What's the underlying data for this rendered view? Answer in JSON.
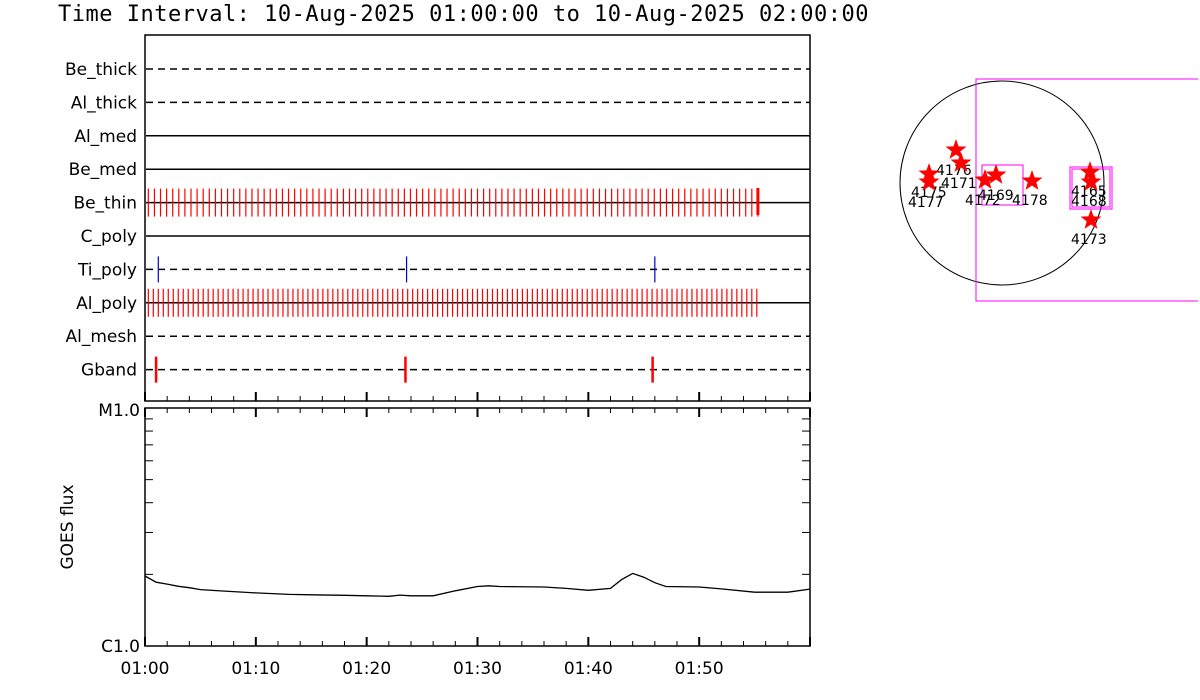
{
  "title": "Time Interval: 10-Aug-2025 01:00:00 to 10-Aug-2025 02:00:00",
  "colors": {
    "event_red": "#ff0000",
    "event_blue": "#0000cc",
    "axis": "#000000",
    "fov_box": "#ff00ff",
    "star": "#ff0000"
  },
  "chart_data": [
    {
      "type": "timeline",
      "name": "filter-timeline",
      "x_range_minutes": [
        0,
        60
      ],
      "rows": [
        {
          "label": "Be_thick",
          "style": "dashed",
          "events": []
        },
        {
          "label": "Al_thick",
          "style": "dashed",
          "events": []
        },
        {
          "label": "Al_med",
          "style": "solid",
          "events": []
        },
        {
          "label": "Be_med",
          "style": "solid",
          "events": []
        },
        {
          "label": "Be_thin",
          "style": "solid",
          "color": "event_red",
          "event_span": [
            0.3,
            55.3
          ],
          "event_spacing": 0.55
        },
        {
          "label": "C_poly",
          "style": "solid",
          "events": []
        },
        {
          "label": "Ti_poly",
          "style": "dashed",
          "color": "event_blue",
          "events": [
            1.2,
            23.6,
            46.0
          ]
        },
        {
          "label": "Al_poly",
          "style": "solid",
          "color": "event_red",
          "event_span": [
            0.3,
            55.3
          ],
          "event_spacing": 0.45
        },
        {
          "label": "Al_mesh",
          "style": "dashed",
          "events": []
        },
        {
          "label": "Gband",
          "style": "dashed",
          "color": "event_red",
          "events": [
            1.0,
            23.5,
            45.8
          ]
        }
      ]
    },
    {
      "type": "line",
      "name": "goes-flux",
      "ylabel": "GOES flux",
      "y_tick_labels": [
        "M1.0",
        "C1.0"
      ],
      "ylim_log10_flux": [
        -6,
        -5
      ],
      "x_tick_labels": [
        "01:00",
        "01:10",
        "01:20",
        "01:30",
        "01:40",
        "01:50"
      ],
      "x_tick_minutes": [
        0,
        10,
        20,
        30,
        40,
        50
      ],
      "x": [
        0,
        1,
        2,
        3,
        4,
        5,
        7,
        10,
        13,
        15,
        18,
        20,
        22,
        23,
        24,
        26,
        28,
        30,
        31,
        32,
        36,
        38,
        40,
        42,
        43,
        44,
        45,
        46,
        47,
        50,
        52,
        55,
        58,
        60
      ],
      "y_log10_flux": [
        -5.706,
        -5.732,
        -5.74,
        -5.749,
        -5.755,
        -5.763,
        -5.769,
        -5.777,
        -5.783,
        -5.785,
        -5.787,
        -5.789,
        -5.791,
        -5.786,
        -5.789,
        -5.789,
        -5.768,
        -5.75,
        -5.747,
        -5.75,
        -5.752,
        -5.758,
        -5.766,
        -5.758,
        -5.721,
        -5.695,
        -5.711,
        -5.734,
        -5.75,
        -5.752,
        -5.76,
        -5.774,
        -5.774,
        -5.761
      ]
    },
    {
      "type": "scatter",
      "name": "solar-disk-map",
      "points": [
        {
          "label": "4176"
        },
        {
          "label": "4171"
        },
        {
          "label": "4175"
        },
        {
          "label": "4177"
        },
        {
          "label": "4172"
        },
        {
          "label": "4169"
        },
        {
          "label": "4178"
        },
        {
          "label": "4165"
        },
        {
          "label": "4168"
        },
        {
          "label": "4173"
        }
      ]
    }
  ]
}
